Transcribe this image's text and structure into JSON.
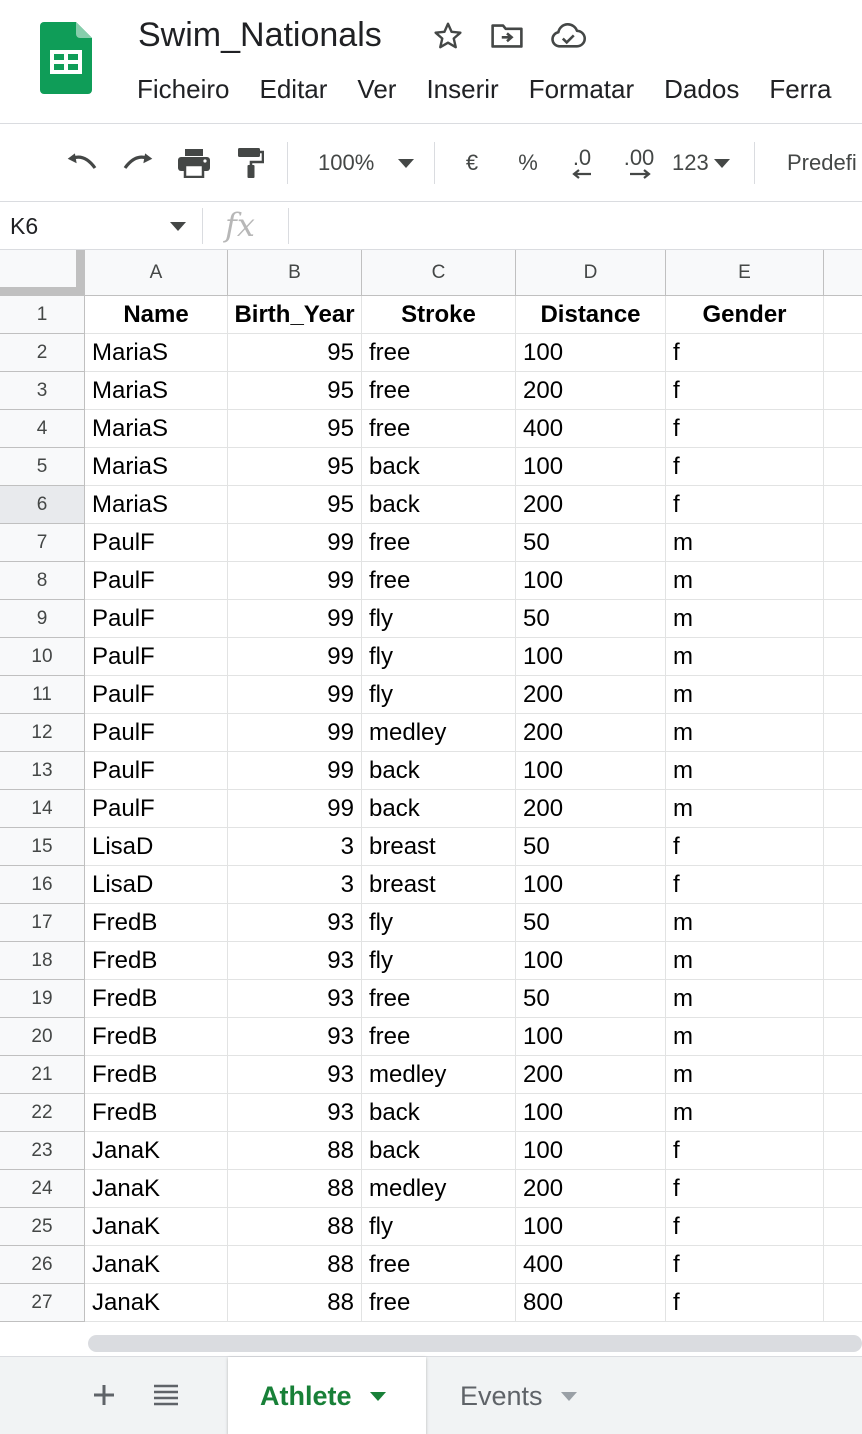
{
  "doc": {
    "title": "Swim_Nationals"
  },
  "menu": [
    "Ficheiro",
    "Editar",
    "Ver",
    "Inserir",
    "Formatar",
    "Dados",
    "Ferra"
  ],
  "toolbar": {
    "zoom": "100%",
    "currency": "€",
    "percent": "%",
    "decrease_decimal": ".0",
    "increase_decimal": ".00",
    "number_format": "123",
    "font": "Predefi"
  },
  "formula_bar": {
    "cell_ref": "K6",
    "fx": "fx",
    "content": ""
  },
  "grid": {
    "columns": [
      "A",
      "B",
      "C",
      "D",
      "E"
    ],
    "selected_row": 6,
    "header_row": [
      "Name",
      "Birth_Year",
      "Stroke",
      "Distance",
      "Gender"
    ],
    "rows": [
      [
        "MariaS",
        "95",
        "free",
        "100",
        "f"
      ],
      [
        "MariaS",
        "95",
        "free",
        "200",
        "f"
      ],
      [
        "MariaS",
        "95",
        "free",
        "400",
        "f"
      ],
      [
        "MariaS",
        "95",
        "back",
        "100",
        "f"
      ],
      [
        "MariaS",
        "95",
        "back",
        "200",
        "f"
      ],
      [
        "PaulF",
        "99",
        "free",
        "50",
        "m"
      ],
      [
        "PaulF",
        "99",
        "free",
        "100",
        "m"
      ],
      [
        "PaulF",
        "99",
        "fly",
        "50",
        "m"
      ],
      [
        "PaulF",
        "99",
        "fly",
        "100",
        "m"
      ],
      [
        "PaulF",
        "99",
        "fly",
        "200",
        "m"
      ],
      [
        "PaulF",
        "99",
        "medley",
        "200",
        "m"
      ],
      [
        "PaulF",
        "99",
        "back",
        "100",
        "m"
      ],
      [
        "PaulF",
        "99",
        "back",
        "200",
        "m"
      ],
      [
        "LisaD",
        "3",
        "breast",
        "50",
        "f"
      ],
      [
        "LisaD",
        "3",
        "breast",
        "100",
        "f"
      ],
      [
        "FredB",
        "93",
        "fly",
        "50",
        "m"
      ],
      [
        "FredB",
        "93",
        "fly",
        "100",
        "m"
      ],
      [
        "FredB",
        "93",
        "free",
        "50",
        "m"
      ],
      [
        "FredB",
        "93",
        "free",
        "100",
        "m"
      ],
      [
        "FredB",
        "93",
        "medley",
        "200",
        "m"
      ],
      [
        "FredB",
        "93",
        "back",
        "100",
        "m"
      ],
      [
        "JanaK",
        "88",
        "back",
        "100",
        "f"
      ],
      [
        "JanaK",
        "88",
        "medley",
        "200",
        "f"
      ],
      [
        "JanaK",
        "88",
        "fly",
        "100",
        "f"
      ],
      [
        "JanaK",
        "88",
        "free",
        "400",
        "f"
      ],
      [
        "JanaK",
        "88",
        "free",
        "800",
        "f"
      ]
    ]
  },
  "sheets": [
    {
      "name": "Athlete",
      "active": true
    },
    {
      "name": "Events",
      "active": false
    }
  ],
  "colors": {
    "brand_green": "#188038",
    "logo_green": "#0f9d58"
  },
  "icons": {
    "star": "star-icon",
    "move": "move-to-folder-icon",
    "cloud": "cloud-saved-icon",
    "undo": "undo-icon",
    "redo": "redo-icon",
    "print": "print-icon",
    "paint": "paint-format-icon"
  }
}
